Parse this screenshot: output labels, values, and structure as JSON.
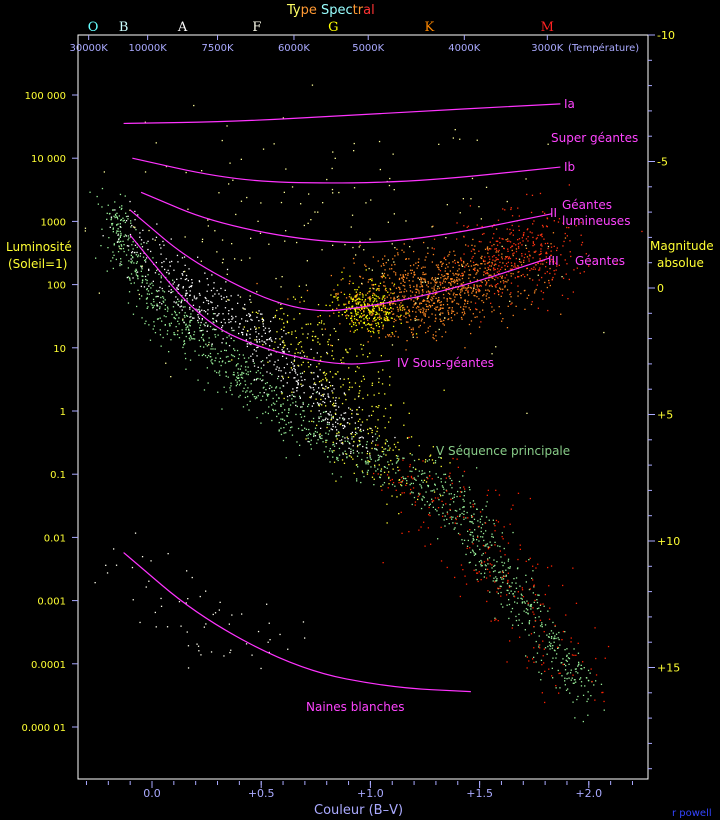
{
  "chart_data": {
    "type": "scatter",
    "title": "Type Spectral",
    "title_parts": [
      {
        "text": "Ty",
        "color": "#ffff66"
      },
      {
        "text": "pe ",
        "color": "#ff9933"
      },
      {
        "text": "Spec",
        "color": "#99ffff"
      },
      {
        "text": "tr",
        "color": "#ff9933"
      },
      {
        "text": "al",
        "color": "#ff3333"
      }
    ],
    "xlabel": "Couleur (B–V)",
    "ylabel_left": [
      "Luminosité",
      "(Soleil=1)"
    ],
    "ylabel_right": [
      "Magnitude",
      "absolue"
    ],
    "x_range": [
      -0.34,
      2.27
    ],
    "y_log_luminosity_range": [
      -5.95,
      5.93
    ],
    "x_ticks": [
      {
        "v": 0.0,
        "label": "0.0"
      },
      {
        "v": 0.5,
        "label": "+0.5"
      },
      {
        "v": 1.0,
        "label": "+1.0"
      },
      {
        "v": 1.5,
        "label": "+1.5"
      },
      {
        "v": 2.0,
        "label": "+2.0"
      }
    ],
    "x_minor_step": 0.1,
    "y_ticks_left": [
      {
        "logL": 5,
        "label": "100 000"
      },
      {
        "logL": 4,
        "label": "10 000"
      },
      {
        "logL": 3,
        "label": "1000"
      },
      {
        "logL": 2,
        "label": "100"
      },
      {
        "logL": 1,
        "label": "10"
      },
      {
        "logL": 0,
        "label": "1"
      },
      {
        "logL": -1,
        "label": "0.1"
      },
      {
        "logL": -2,
        "label": "0.01"
      },
      {
        "logL": -3,
        "label": "0.001"
      },
      {
        "logL": -4,
        "label": "0.0001"
      },
      {
        "logL": -5,
        "label": "0.000 01"
      }
    ],
    "y_ticks_right": [
      {
        "mag": -10,
        "label": "-10"
      },
      {
        "mag": -5,
        "label": "-5"
      },
      {
        "mag": 0,
        "label": "0"
      },
      {
        "mag": 5,
        "label": "+5"
      },
      {
        "mag": 10,
        "label": "+10"
      },
      {
        "mag": 15,
        "label": "+15"
      }
    ],
    "temperature_ticks": [
      {
        "bv": -0.29,
        "label": "30000K"
      },
      {
        "bv": -0.02,
        "label": "10000K"
      },
      {
        "bv": 0.3,
        "label": "7500K"
      },
      {
        "bv": 0.65,
        "label": "6000K"
      },
      {
        "bv": 0.99,
        "label": "5000K"
      },
      {
        "bv": 1.43,
        "label": "4000K"
      },
      {
        "bv": 1.81,
        "label": "3000K"
      }
    ],
    "temperature_label": "(Température)",
    "spectral_types": [
      {
        "bv": -0.27,
        "label": "O",
        "color": "#66ffff"
      },
      {
        "bv": -0.13,
        "label": "B",
        "color": "#ccffff"
      },
      {
        "bv": 0.14,
        "label": "A",
        "color": "#ffffff"
      },
      {
        "bv": 0.48,
        "label": "F",
        "color": "#ffffee"
      },
      {
        "bv": 0.83,
        "label": "G",
        "color": "#ffff00"
      },
      {
        "bv": 1.27,
        "label": "K",
        "color": "#ff8800"
      },
      {
        "bv": 1.81,
        "label": "M",
        "color": "#ff2222"
      }
    ],
    "luminosity_classes": [
      {
        "name": "Ia",
        "label": "Ia",
        "points": [
          [
            -0.13,
            4.55
          ],
          [
            0.4,
            4.58
          ],
          [
            1.0,
            4.7
          ],
          [
            1.87,
            4.86
          ]
        ]
      },
      {
        "name": "Ib",
        "label": "Ib",
        "points": [
          [
            -0.09,
            4.0
          ],
          [
            0.3,
            3.7
          ],
          [
            0.63,
            3.6
          ],
          [
            1.2,
            3.62
          ],
          [
            1.87,
            3.86
          ]
        ]
      },
      {
        "name": "II",
        "label": "II",
        "points": [
          [
            -0.05,
            3.46
          ],
          [
            0.3,
            2.95
          ],
          [
            0.86,
            2.62
          ],
          [
            1.3,
            2.75
          ],
          [
            1.83,
            3.12
          ]
        ]
      },
      {
        "name": "III",
        "label": "III",
        "points": [
          [
            -0.1,
            3.18
          ],
          [
            0.2,
            2.3
          ],
          [
            0.68,
            1.52
          ],
          [
            1.05,
            1.68
          ],
          [
            1.4,
            1.95
          ],
          [
            1.82,
            2.42
          ]
        ]
      },
      {
        "name": "IV",
        "label": "IV  Sous-géantes",
        "points": [
          [
            -0.1,
            2.78
          ],
          [
            0.22,
            1.44
          ],
          [
            0.5,
            0.98
          ],
          [
            0.86,
            0.71
          ],
          [
            1.09,
            0.8
          ]
        ]
      },
      {
        "name": "WD",
        "label": "Naines blanches",
        "points": [
          [
            -0.13,
            -2.24
          ],
          [
            0.22,
            -3.27
          ],
          [
            0.68,
            -4.1
          ],
          [
            1.1,
            -4.38
          ],
          [
            1.46,
            -4.44
          ]
        ]
      }
    ],
    "annotations": [
      {
        "text": "Super géantes",
        "color": "#ff44ff"
      },
      {
        "text": "Géantes",
        "color": "#ff44ff"
      },
      {
        "text": "lumineuses",
        "color": "#ff44ff"
      },
      {
        "text": "Géantes",
        "color": "#ff44ff"
      },
      {
        "text": "V  Séquence principale",
        "color": "#88cc88"
      }
    ],
    "star_groups": [
      {
        "name": "main-sequence",
        "color": "#99ee99",
        "count": 1300,
        "spread": [
          0.04,
          0.22
        ],
        "path": [
          [
            -0.19,
            3.18
          ],
          [
            -0.1,
            2.4
          ],
          [
            0.04,
            1.6
          ],
          [
            0.22,
            1.05
          ],
          [
            0.45,
            0.5
          ],
          [
            0.63,
            -0.14
          ],
          [
            0.91,
            -0.62
          ],
          [
            1.23,
            -1.1
          ],
          [
            1.44,
            -1.57
          ],
          [
            1.55,
            -2.37
          ],
          [
            1.74,
            -3.32
          ],
          [
            2.01,
            -4.51
          ]
        ]
      },
      {
        "name": "upper-band",
        "color": "#ffffff",
        "count": 600,
        "spread": [
          0.06,
          0.2
        ],
        "path": [
          [
            -0.12,
            2.9
          ],
          [
            0.1,
            2.0
          ],
          [
            0.3,
            1.6
          ],
          [
            0.5,
            1.2
          ],
          [
            0.65,
            0.6
          ],
          [
            0.8,
            0.0
          ],
          [
            0.95,
            -0.4
          ]
        ]
      },
      {
        "name": "subgiants",
        "color": "#ffff33",
        "count": 350,
        "spread": [
          0.1,
          0.35
        ],
        "path": [
          [
            0.55,
            1.4
          ],
          [
            0.75,
            1.0
          ],
          [
            0.9,
            0.4
          ],
          [
            1.0,
            -0.5
          ],
          [
            1.2,
            -1.0
          ]
        ]
      },
      {
        "name": "giant-clump",
        "color": "#ffff00",
        "count": 300,
        "spread": [
          0.06,
          0.18
        ],
        "path": [
          [
            0.9,
            1.7
          ],
          [
            1.0,
            1.65
          ],
          [
            1.05,
            1.6
          ]
        ]
      },
      {
        "name": "giants-orange",
        "color": "#ff8822",
        "count": 900,
        "spread": [
          0.15,
          0.3
        ],
        "path": [
          [
            1.05,
            1.65
          ],
          [
            1.3,
            1.9
          ],
          [
            1.55,
            2.2
          ]
        ]
      },
      {
        "name": "giants-red",
        "color": "#ff3311",
        "count": 350,
        "spread": [
          0.12,
          0.35
        ],
        "path": [
          [
            1.5,
            2.3
          ],
          [
            1.7,
            2.5
          ],
          [
            1.82,
            2.6
          ]
        ]
      },
      {
        "name": "red-dwarfs",
        "color": "#ff2200",
        "count": 250,
        "spread": [
          0.12,
          0.3
        ],
        "path": [
          [
            1.1,
            -0.9
          ],
          [
            1.4,
            -1.5
          ],
          [
            1.55,
            -2.4
          ],
          [
            1.75,
            -3.3
          ],
          [
            2.0,
            -4.4
          ]
        ]
      },
      {
        "name": "white-dwarfs",
        "color": "#ffffee",
        "count": 60,
        "spread": [
          0.15,
          0.3
        ],
        "path": [
          [
            -0.1,
            -2.3
          ],
          [
            0.22,
            -3.2
          ],
          [
            0.6,
            -3.9
          ]
        ]
      },
      {
        "name": "sparse-field",
        "color": "#ffff99",
        "count": 200,
        "spread": [
          0.5,
          1.0
        ],
        "path": [
          [
            0.2,
            3.5
          ],
          [
            0.7,
            2.7
          ],
          [
            1.2,
            2.5
          ]
        ]
      }
    ]
  },
  "credit": "r powell"
}
